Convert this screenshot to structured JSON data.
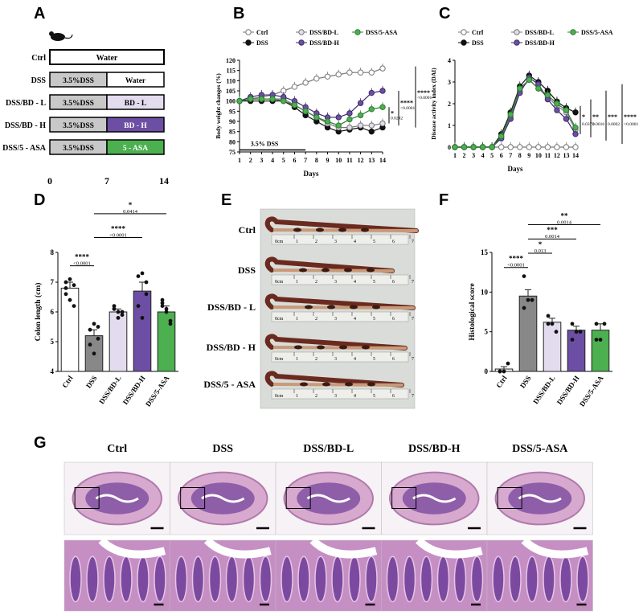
{
  "panel_letters": {
    "A": "A",
    "B": "B",
    "C": "C",
    "D": "D",
    "E": "E",
    "F": "F",
    "G": "G"
  },
  "colors": {
    "ctrl": "#ffffff",
    "dss": "#111111",
    "bdl": "#e3dcee",
    "bdh": "#6d4ea5",
    "asa": "#4caf50",
    "dss_bar": "#888888",
    "dss_box": "#c8c8c8"
  },
  "panelA": {
    "rows": [
      {
        "label": "Ctrl",
        "seg1": "Water",
        "seg2": ""
      },
      {
        "label": "DSS",
        "seg1": "3.5%DSS",
        "seg2": "Water"
      },
      {
        "label": "DSS/BD - L",
        "seg1": "3.5%DSS",
        "seg2": "BD - L"
      },
      {
        "label": "DSS/BD - H",
        "seg1": "3.5%DSS",
        "seg2": "BD - H"
      },
      {
        "label": "DSS/5 - ASA",
        "seg1": "3.5%DSS",
        "seg2": "5 - ASA"
      }
    ],
    "axis_ticks": [
      "0",
      "7",
      "14"
    ]
  },
  "chart_data": [
    {
      "id": "B",
      "type": "line",
      "title": "",
      "xlabel": "Days",
      "ylabel": "Body weight changes (%)",
      "x": [
        1,
        2,
        3,
        4,
        5,
        6,
        7,
        8,
        9,
        10,
        11,
        12,
        13,
        14
      ],
      "xlim": [
        1,
        14
      ],
      "ylim": [
        75,
        120
      ],
      "yticks": [
        75,
        80,
        85,
        90,
        95,
        100,
        105,
        110,
        115,
        120
      ],
      "series": [
        {
          "name": "Ctrl",
          "values": [
            100,
            101,
            102,
            103,
            105,
            107,
            109,
            111,
            112,
            113,
            114,
            114,
            114,
            116
          ]
        },
        {
          "name": "DSS",
          "values": [
            100,
            100,
            100,
            100,
            100,
            97,
            93,
            90,
            87,
            85,
            86,
            87,
            85,
            87
          ]
        },
        {
          "name": "DSS/BD-L",
          "values": [
            100,
            101,
            101,
            101,
            101,
            98,
            95,
            92,
            89,
            87,
            87,
            88,
            88,
            89
          ]
        },
        {
          "name": "DSS/BD-H",
          "values": [
            100,
            102,
            103,
            103,
            102,
            100,
            97,
            94,
            92,
            92,
            94,
            99,
            104,
            105
          ]
        },
        {
          "name": "DSS/5-ASA",
          "values": [
            100,
            101,
            101,
            101,
            100,
            98,
            95,
            92,
            90,
            88,
            91,
            93,
            96,
            97
          ]
        }
      ],
      "annotation": "3.5% DSS",
      "stats": [
        {
          "stars": "*",
          "p": "0.0242"
        },
        {
          "stars": "****",
          "p": "<0.0001"
        },
        {
          "stars": "****",
          "p": "<0.0001"
        }
      ]
    },
    {
      "id": "C",
      "type": "line",
      "title": "",
      "xlabel": "Days",
      "ylabel": "Disease activity index (DAI)",
      "x": [
        1,
        2,
        3,
        4,
        5,
        6,
        7,
        8,
        9,
        10,
        11,
        12,
        13,
        14
      ],
      "xlim": [
        1,
        14
      ],
      "ylim": [
        0,
        4
      ],
      "yticks": [
        0,
        1,
        2,
        3,
        4
      ],
      "series": [
        {
          "name": "Ctrl",
          "values": [
            0,
            0,
            0,
            0,
            0,
            0,
            0,
            0,
            0,
            0,
            0,
            0,
            0,
            0
          ]
        },
        {
          "name": "DSS",
          "values": [
            0,
            0,
            0,
            0,
            0,
            0.6,
            1.6,
            2.8,
            3.3,
            3.0,
            2.6,
            2.1,
            1.8,
            1.6
          ]
        },
        {
          "name": "DSS/BD-L",
          "values": [
            0,
            0,
            0,
            0,
            0,
            0.5,
            1.4,
            2.6,
            3.1,
            2.7,
            2.3,
            1.9,
            1.6,
            0.8
          ]
        },
        {
          "name": "DSS/BD-H",
          "values": [
            0,
            0,
            0,
            0,
            0,
            0.4,
            1.3,
            2.5,
            3.2,
            2.9,
            2.2,
            1.7,
            1.3,
            0.6
          ]
        },
        {
          "name": "DSS/5-ASA",
          "values": [
            0,
            0,
            0,
            0,
            0,
            0.5,
            1.5,
            2.7,
            3.1,
            2.7,
            2.4,
            2.0,
            1.7,
            0.9
          ]
        }
      ],
      "stats": [
        {
          "stars": "*",
          "p": "0.0373"
        },
        {
          "stars": "**",
          "p": "0.0016"
        },
        {
          "stars": "***",
          "p": "0.0002"
        },
        {
          "stars": "****",
          "p": "<0.0001"
        }
      ]
    },
    {
      "id": "D",
      "type": "bar",
      "title": "",
      "xlabel": "",
      "ylabel": "Colon length (cm)",
      "categories": [
        "Ctrl",
        "DSS",
        "DSS/BD-L",
        "DSS/BD-H",
        "DSS/5-ASA"
      ],
      "values": [
        6.8,
        5.2,
        6.0,
        6.7,
        6.0
      ],
      "errors": [
        0.2,
        0.2,
        0.1,
        0.3,
        0.2
      ],
      "points": [
        [
          7.0,
          7.1,
          6.9,
          6.6,
          6.4,
          6.2,
          6.8
        ],
        [
          5.4,
          5.6,
          5.1,
          4.9,
          4.6,
          5.5
        ],
        [
          6.1,
          6.0,
          5.9,
          6.2,
          5.8,
          6.0,
          6.1
        ],
        [
          7.2,
          7.3,
          6.6,
          6.2,
          5.8,
          7.0
        ],
        [
          6.3,
          6.0,
          5.7,
          6.4,
          6.1,
          5.6,
          6.2
        ]
      ],
      "ylim": [
        4,
        8
      ],
      "yticks": [
        4,
        5,
        6,
        7,
        8
      ],
      "stats": [
        {
          "stars": "****",
          "p": "<0.0001"
        },
        {
          "stars": "****",
          "p": "<0.0001"
        },
        {
          "stars": "*",
          "p": "0.0414"
        }
      ]
    },
    {
      "id": "F",
      "type": "bar",
      "title": "",
      "xlabel": "",
      "ylabel": "Histological score",
      "categories": [
        "Ctrl",
        "DSS",
        "DSS/BD-L",
        "DSS/BD-H",
        "DSS/5-ASA"
      ],
      "values": [
        0.3,
        9.5,
        6.2,
        5.2,
        5.2
      ],
      "errors": [
        0.3,
        0.8,
        0.5,
        0.5,
        0.8
      ],
      "points": [
        [
          0,
          0,
          1,
          0
        ],
        [
          12,
          9,
          9,
          8
        ],
        [
          7,
          6,
          5,
          6
        ],
        [
          6,
          5,
          5,
          4
        ],
        [
          6,
          4,
          6,
          4
        ]
      ],
      "ylim": [
        0,
        15
      ],
      "yticks": [
        0,
        5,
        10,
        15
      ],
      "stats": [
        {
          "stars": "****",
          "p": "<0.0001"
        },
        {
          "stars": "*",
          "p": "0.013"
        },
        {
          "stars": "***",
          "p": "0.0014"
        },
        {
          "stars": "**",
          "p": "0.0014"
        }
      ]
    }
  ],
  "legend": [
    "Ctrl",
    "DSS",
    "DSS/BD-L",
    "DSS/BD-H",
    "DSS/5-ASA"
  ],
  "panelE": {
    "labels": [
      "Ctrl",
      "DSS",
      "DSS/BD - L",
      "DSS/BD - H",
      "DSS/5 - ASA"
    ],
    "ruler_unit": "0cm",
    "ruler_numbers": [
      "1",
      "2",
      "3",
      "4",
      "5",
      "6",
      "7"
    ]
  },
  "panelG": {
    "labels": [
      "Ctrl",
      "DSS",
      "DSS/BD-L",
      "DSS/BD-H",
      "DSS/5-ASA"
    ]
  }
}
